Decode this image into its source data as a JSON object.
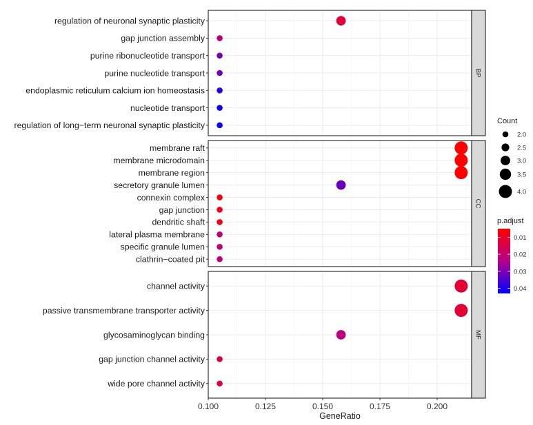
{
  "chart_data": {
    "type": "scatter",
    "subtype": "dotplot-faceted",
    "title": "",
    "xlabel": "GeneRatio",
    "ylabel": "",
    "xlim": [
      0.1,
      0.215
    ],
    "x_ticks": [
      0.1,
      0.125,
      0.15,
      0.175,
      0.2
    ],
    "x_tick_labels": [
      "0.100",
      "0.125",
      "0.150",
      "0.175",
      "0.200"
    ],
    "grid": true,
    "facets": [
      {
        "label": "BP",
        "terms": [
          {
            "term": "regulation of neuronal synaptic plasticity",
            "gene_ratio": 0.158,
            "count": 3,
            "p_adjust": 0.012
          },
          {
            "term": "gap junction assembly",
            "gene_ratio": 0.105,
            "count": 2,
            "p_adjust": 0.022
          },
          {
            "term": "purine ribonucleotide transport",
            "gene_ratio": 0.105,
            "count": 2,
            "p_adjust": 0.031
          },
          {
            "term": "purine nucleotide transport",
            "gene_ratio": 0.105,
            "count": 2,
            "p_adjust": 0.031
          },
          {
            "term": "endoplasmic reticulum calcium ion homeostasis",
            "gene_ratio": 0.105,
            "count": 2,
            "p_adjust": 0.039
          },
          {
            "term": "nucleotide transport",
            "gene_ratio": 0.105,
            "count": 2,
            "p_adjust": 0.042
          },
          {
            "term": "regulation of long−term neuronal synaptic plasticity",
            "gene_ratio": 0.105,
            "count": 2,
            "p_adjust": 0.042
          }
        ]
      },
      {
        "label": "CC",
        "terms": [
          {
            "term": "membrane raft",
            "gene_ratio": 0.2105,
            "count": 4,
            "p_adjust": 0.005
          },
          {
            "term": "membrane microdomain",
            "gene_ratio": 0.2105,
            "count": 4,
            "p_adjust": 0.005
          },
          {
            "term": "membrane region",
            "gene_ratio": 0.2105,
            "count": 4,
            "p_adjust": 0.005
          },
          {
            "term": "secretory granule lumen",
            "gene_ratio": 0.158,
            "count": 3,
            "p_adjust": 0.032
          },
          {
            "term": "connexin complex",
            "gene_ratio": 0.105,
            "count": 2,
            "p_adjust": 0.007
          },
          {
            "term": "gap junction",
            "gene_ratio": 0.105,
            "count": 2,
            "p_adjust": 0.008
          },
          {
            "term": "dendritic shaft",
            "gene_ratio": 0.105,
            "count": 2,
            "p_adjust": 0.008
          },
          {
            "term": "lateral plasma membrane",
            "gene_ratio": 0.105,
            "count": 2,
            "p_adjust": 0.021
          },
          {
            "term": "specific granule lumen",
            "gene_ratio": 0.105,
            "count": 2,
            "p_adjust": 0.021
          },
          {
            "term": "clathrin−coated pit",
            "gene_ratio": 0.105,
            "count": 2,
            "p_adjust": 0.022
          }
        ]
      },
      {
        "label": "MF",
        "terms": [
          {
            "term": "channel activity",
            "gene_ratio": 0.2105,
            "count": 4,
            "p_adjust": 0.012
          },
          {
            "term": "passive transmembrane transporter activity",
            "gene_ratio": 0.2105,
            "count": 4,
            "p_adjust": 0.012
          },
          {
            "term": "glycosaminoglycan binding",
            "gene_ratio": 0.158,
            "count": 3,
            "p_adjust": 0.022
          },
          {
            "term": "gap junction channel activity",
            "gene_ratio": 0.105,
            "count": 2,
            "p_adjust": 0.013
          },
          {
            "term": "wide pore channel activity",
            "gene_ratio": 0.105,
            "count": 2,
            "p_adjust": 0.013
          }
        ]
      }
    ],
    "legend_size": {
      "title": "Count",
      "values": [
        2.0,
        2.5,
        3.0,
        3.5,
        4.0
      ],
      "labels": [
        "2.0",
        "2.5",
        "3.0",
        "3.5",
        "4.0"
      ],
      "placement": "right"
    },
    "legend_color": {
      "title": "p.adjust",
      "values": [
        0.01,
        0.02,
        0.03,
        0.04
      ],
      "labels": [
        "0.01",
        "0.02",
        "0.03",
        "0.04"
      ],
      "range": [
        0.005,
        0.043
      ],
      "low_color": "#FF0000",
      "high_color": "#0000FF",
      "placement": "right"
    }
  }
}
